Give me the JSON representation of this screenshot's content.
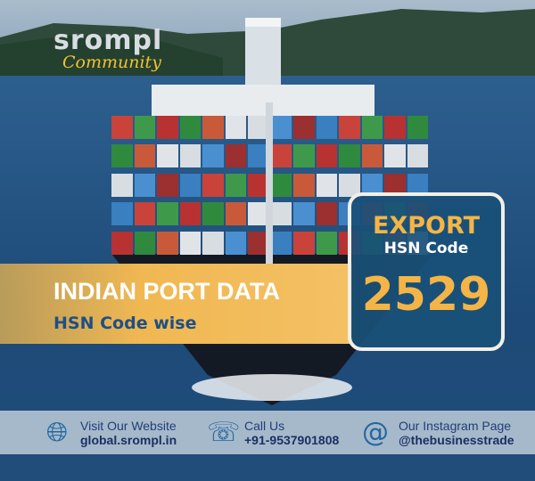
{
  "logo": {
    "brand": "srompl",
    "tagline": "Community"
  },
  "banner": {
    "title": "INDIAN PORT DATA",
    "subtitle": "HSN Code wise"
  },
  "code_box": {
    "type": "EXPORT",
    "label": "HSN Code",
    "code": "2529"
  },
  "footer": [
    {
      "icon": "globe-icon",
      "label": "Visit Our Website",
      "value": "global.srompl.in"
    },
    {
      "icon": "phone-icon",
      "label": "Call Us",
      "value": "+91-9537901808"
    },
    {
      "icon": "at-icon",
      "label": "Our Instagram Page",
      "value": "@thebusinesstrade"
    }
  ],
  "colors": {
    "accent": "#f4b546",
    "navy": "#1f4f86",
    "box": "#195078"
  }
}
